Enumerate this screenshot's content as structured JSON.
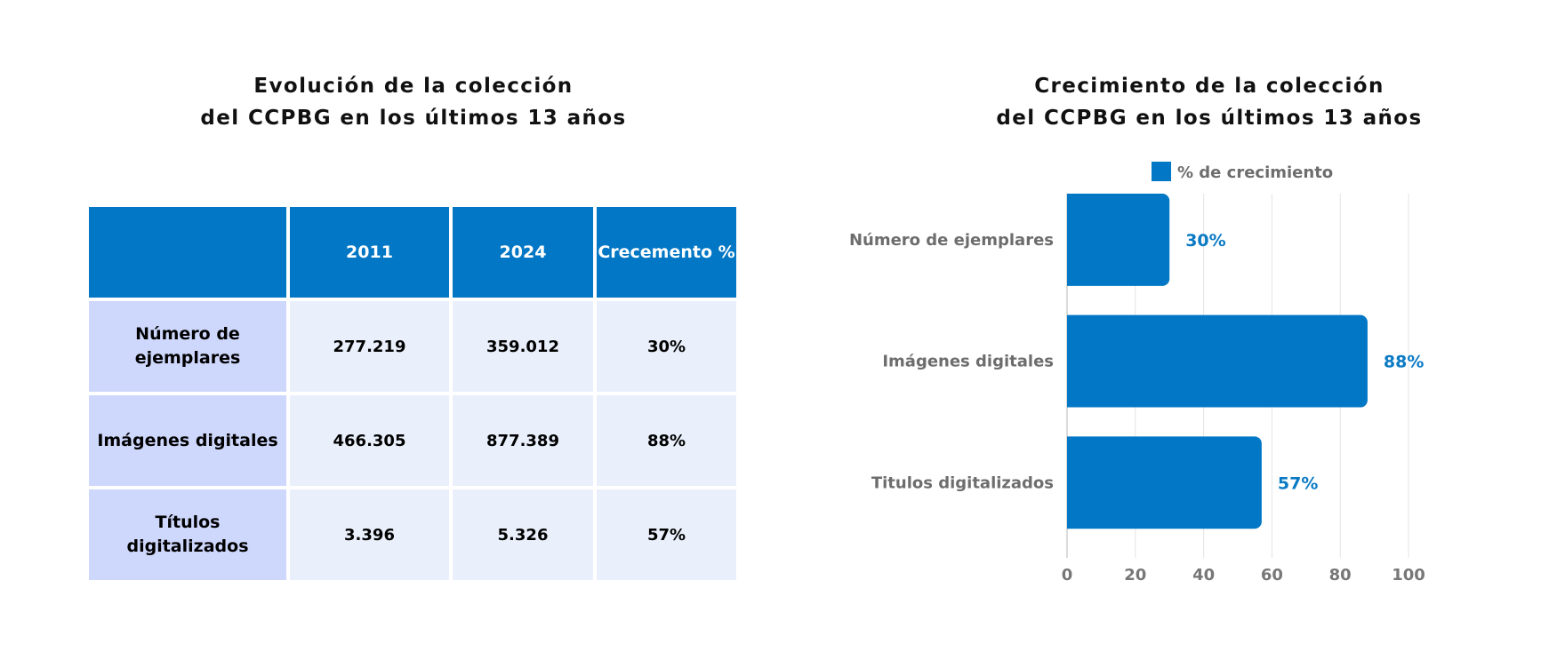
{
  "left_panel": {
    "title_lines": [
      "Evolución de la colección",
      "del CCPBG en los últimos 13 años"
    ],
    "table": {
      "headers": [
        "",
        "2011",
        "2024",
        "Crecemento %"
      ],
      "rows": [
        {
          "label": "Número de ejemplares",
          "values": [
            "277.219",
            "359.012",
            "30%"
          ]
        },
        {
          "label": "Imágenes digitales",
          "values": [
            "466.305",
            "877.389",
            "88%"
          ]
        },
        {
          "label": "Títulos digitalizados",
          "values": [
            "3.396",
            "5.326",
            "57%"
          ]
        }
      ]
    }
  },
  "right_panel": {
    "title_lines": [
      "Crecimiento de la colección",
      "del CCPBG en los últimos 13 años"
    ]
  },
  "colors": {
    "header_blue": "#0177c5",
    "row_label_bg": "#ced7fc",
    "cell_bg": "#e9f0fb",
    "bar_blue": "#0177c5",
    "value_label": "#0a7ac4",
    "axis_text": "#777777"
  },
  "chart_data": {
    "type": "bar",
    "orientation": "horizontal",
    "title": "Crecimiento de la colección del CCPBG en los últimos 13 años",
    "categories": [
      "Número de ejemplares",
      "Imágenes digitales",
      "Titulos digitalizados"
    ],
    "series": [
      {
        "name": "% de crecimiento",
        "values": [
          30,
          88,
          57
        ]
      }
    ],
    "data_labels": [
      "30%",
      "88%",
      "57%"
    ],
    "x_ticks": [
      "0",
      "20",
      "40",
      "60",
      "80",
      "100"
    ],
    "xlim": [
      0,
      100
    ],
    "xlabel": "",
    "ylabel": "",
    "grid": true,
    "legend_position": "top"
  }
}
